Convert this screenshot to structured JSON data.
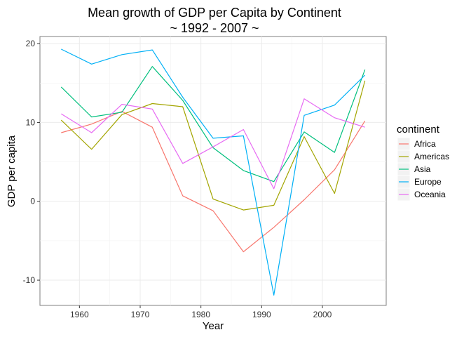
{
  "chart_data": {
    "type": "line",
    "title": "Mean growth of GDP per Capita by Continent",
    "subtitle": "~ 1992 - 2007 ~",
    "xlabel": "Year",
    "ylabel": "GDP per capita",
    "xlim": [
      1953.5,
      2010.5
    ],
    "ylim": [
      -13.2,
      20.9
    ],
    "x_ticks": [
      1960,
      1970,
      1980,
      1990,
      2000
    ],
    "y_ticks": [
      -10,
      0,
      10,
      20
    ],
    "grid": true,
    "legend": {
      "title": "continent",
      "position": "right"
    },
    "x": [
      1957,
      1962,
      1967,
      1972,
      1977,
      1982,
      1987,
      1992,
      1997,
      2002,
      2007
    ],
    "series": [
      {
        "name": "Africa",
        "color": "#F8766D",
        "values": [
          8.7,
          9.8,
          11.4,
          9.4,
          0.7,
          -1.2,
          -6.4,
          -3.3,
          0.2,
          4.0,
          10.2
        ]
      },
      {
        "name": "Americas",
        "color": "#A3A500",
        "values": [
          10.3,
          6.6,
          11.0,
          12.4,
          12.0,
          0.3,
          -1.1,
          -0.5,
          8.2,
          1.0,
          15.3
        ]
      },
      {
        "name": "Asia",
        "color": "#00BF7D",
        "values": [
          14.5,
          10.7,
          11.3,
          17.1,
          12.8,
          6.8,
          3.9,
          2.5,
          8.8,
          6.2,
          16.7
        ]
      },
      {
        "name": "Europe",
        "color": "#00B0F6",
        "values": [
          19.3,
          17.4,
          18.6,
          19.2,
          13.2,
          8.0,
          8.3,
          -11.9,
          10.9,
          12.2,
          16.0
        ]
      },
      {
        "name": "Oceania",
        "color": "#E76BF3",
        "values": [
          11.1,
          8.7,
          12.3,
          11.7,
          4.8,
          6.9,
          9.1,
          1.6,
          13.0,
          10.6,
          9.4
        ]
      }
    ]
  }
}
